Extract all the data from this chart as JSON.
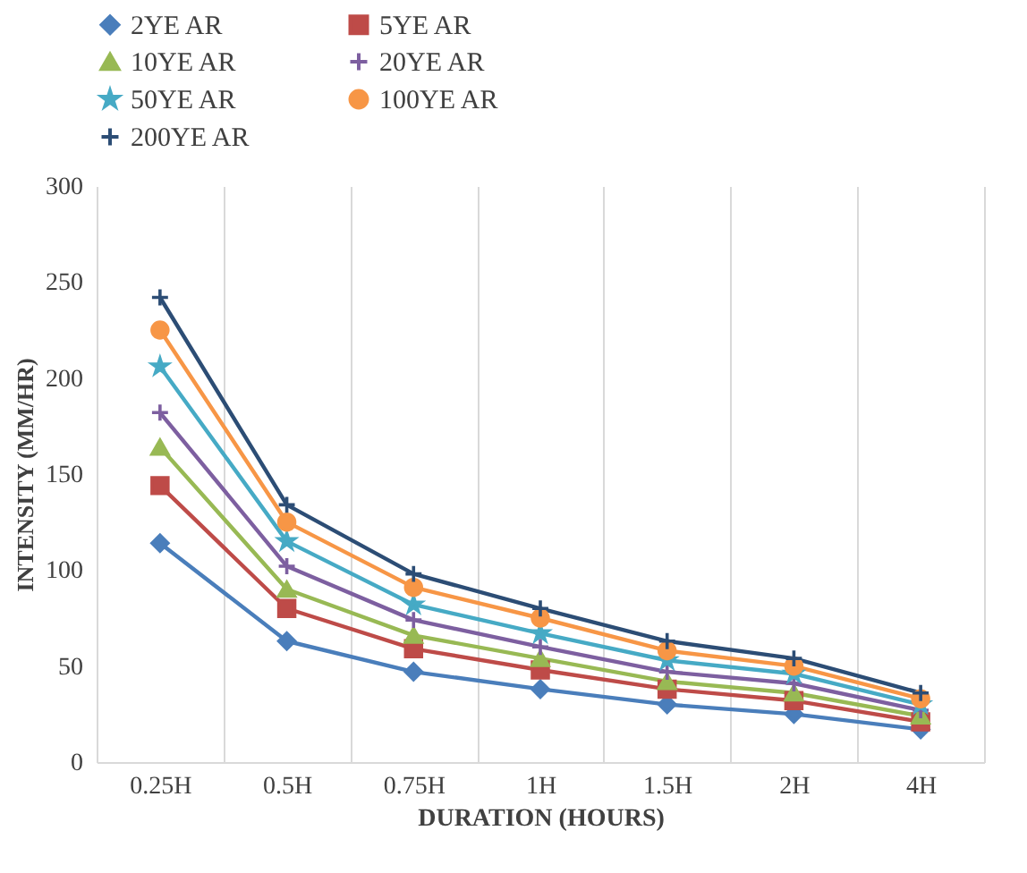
{
  "chart_data": {
    "type": "line",
    "xlabel": "DURATION  (HOURS)",
    "ylabel": "INTENSITY  (MM/HR)",
    "categories": [
      "0.25H",
      "0.5H",
      "0.75H",
      "1H",
      "1.5H",
      "2H",
      "4H"
    ],
    "ylim": [
      0,
      300
    ],
    "yticks": [
      0,
      50,
      100,
      150,
      200,
      250,
      300
    ],
    "grid": "x",
    "legend": "top",
    "series": [
      {
        "name": "2YE AR",
        "color": "#4a7ebb",
        "marker": "diamond",
        "values": [
          114,
          63,
          47,
          38,
          30,
          25,
          17
        ]
      },
      {
        "name": "5YE AR",
        "color": "#be4b48",
        "marker": "square",
        "values": [
          144,
          80,
          59,
          48,
          38,
          32,
          21
        ]
      },
      {
        "name": "10YE AR",
        "color": "#98b954",
        "marker": "triangle",
        "values": [
          164,
          90,
          66,
          54,
          42,
          36,
          24
        ]
      },
      {
        "name": "20YE AR",
        "color": "#7d5fa0",
        "marker": "cross",
        "values": [
          182,
          102,
          74,
          60,
          47,
          41,
          27
        ]
      },
      {
        "name": "50YE AR",
        "color": "#46aac5",
        "marker": "star",
        "values": [
          206,
          115,
          82,
          67,
          53,
          46,
          30
        ]
      },
      {
        "name": "100YE AR",
        "color": "#f79646",
        "marker": "circle",
        "values": [
          225,
          125,
          91,
          75,
          58,
          50,
          33
        ]
      },
      {
        "name": "200YE AR",
        "color": "#2c4d75",
        "marker": "cross",
        "values": [
          242,
          134,
          98,
          80,
          63,
          54,
          36
        ]
      }
    ]
  }
}
